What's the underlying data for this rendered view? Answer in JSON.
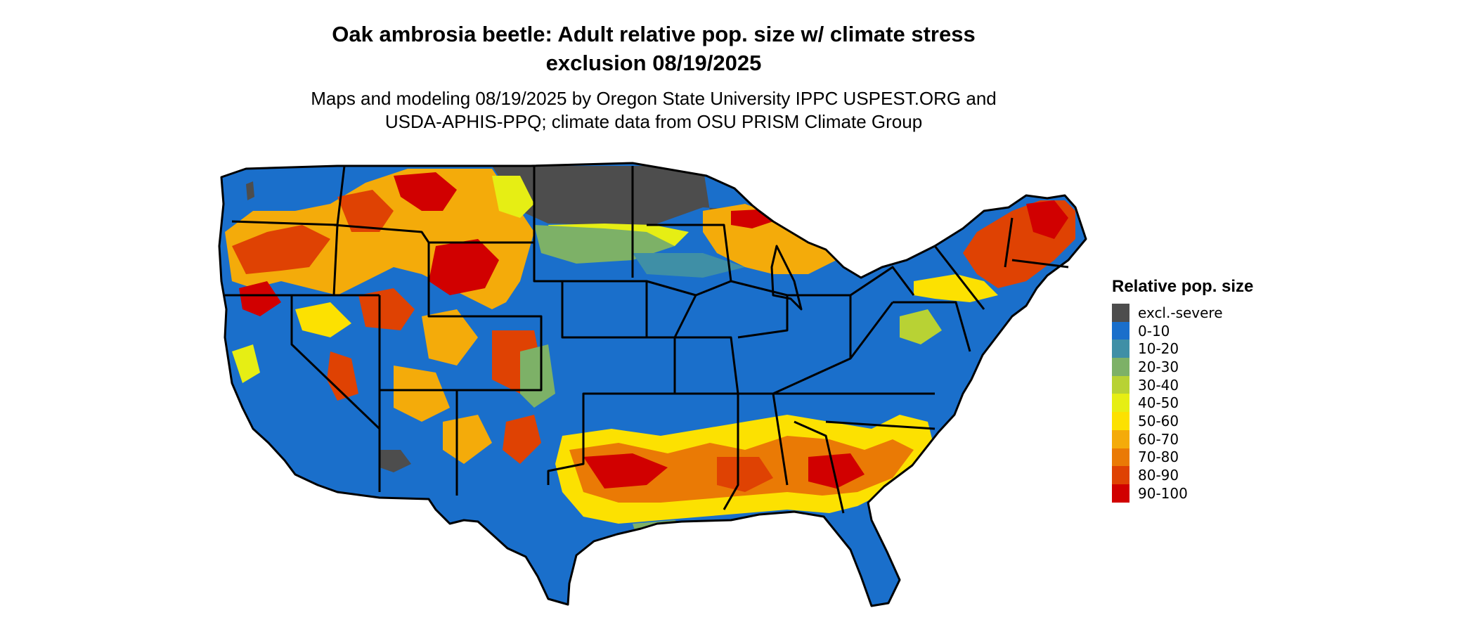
{
  "title": {
    "line1": "Oak ambrosia beetle: Adult relative pop. size w/ climate stress",
    "line2": "exclusion 08/19/2025"
  },
  "subtitle": {
    "line1": "Maps and modeling 08/19/2025 by Oregon State University IPPC USPEST.ORG and",
    "line2": "USDA-APHIS-PPQ; climate data from OSU PRISM Climate Group"
  },
  "legend": {
    "title": "Relative pop. size",
    "items": [
      {
        "label": "excl.-severe",
        "color": "#4d4d4d"
      },
      {
        "label": "0-10",
        "color": "#1a6fcb"
      },
      {
        "label": "10-20",
        "color": "#3f8fa6"
      },
      {
        "label": "20-30",
        "color": "#7db167"
      },
      {
        "label": "30-40",
        "color": "#b8d234"
      },
      {
        "label": "40-50",
        "color": "#e6ee14"
      },
      {
        "label": "50-60",
        "color": "#fce101"
      },
      {
        "label": "60-70",
        "color": "#f4ab0a"
      },
      {
        "label": "70-80",
        "color": "#ea7a05"
      },
      {
        "label": "80-90",
        "color": "#df4203"
      },
      {
        "label": "90-100",
        "color": "#d10000"
      }
    ]
  },
  "map": {
    "region": "Contiguous United States",
    "border_color": "#000000"
  }
}
